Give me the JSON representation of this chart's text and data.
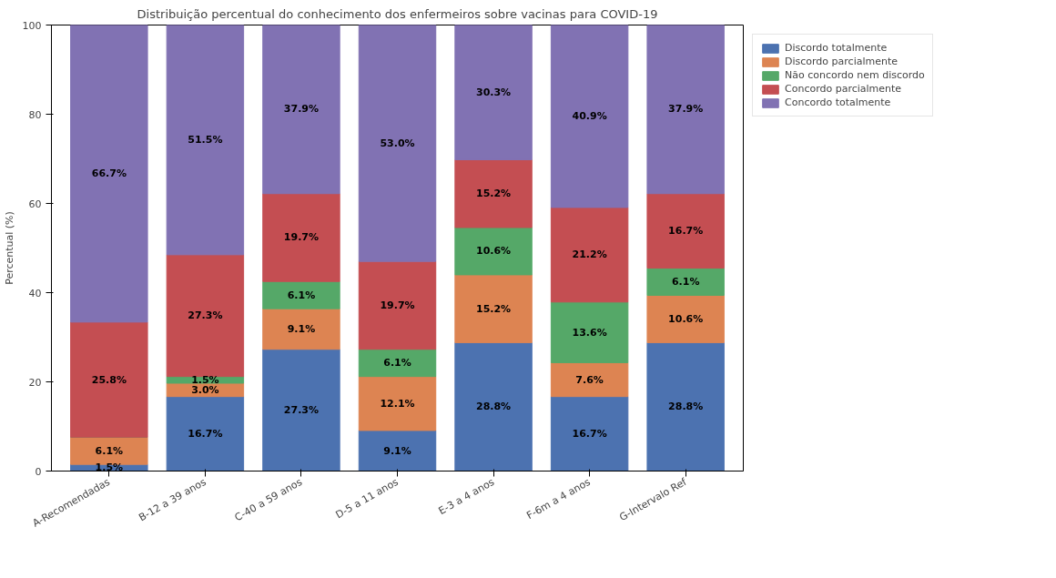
{
  "chart_data": {
    "type": "bar",
    "stacked": true,
    "title": "Distribuição percentual do conhecimento dos enfermeiros sobre vacinas para COVID-19",
    "ylabel": "Percentual (%)",
    "categories": [
      "A-Recomendadas",
      "B-12 a 39 anos",
      "C-40 a 59 anos",
      "D-5 a 11 anos",
      "E-3 a 4 anos",
      "F-6m a 4 anos",
      "G-Intervalo Ref"
    ],
    "series": [
      {
        "name": "Discordo totalmente",
        "color": "#4c72b0",
        "values": [
          1.5,
          16.7,
          27.3,
          9.1,
          28.8,
          16.7,
          28.8
        ],
        "value_labels": [
          "1.5%",
          "16.7%",
          "27.3%",
          "9.1%",
          "28.8%",
          "16.7%",
          "28.8%"
        ]
      },
      {
        "name": "Discordo parcialmente",
        "color": "#dd8452",
        "values": [
          6.1,
          3.0,
          9.1,
          12.1,
          15.2,
          7.6,
          10.6
        ],
        "value_labels": [
          "6.1%",
          "3.0%",
          "9.1%",
          "12.1%",
          "15.2%",
          "7.6%",
          "10.6%"
        ]
      },
      {
        "name": "Não concordo nem discordo",
        "color": "#55a868",
        "values": [
          0,
          1.5,
          6.1,
          6.1,
          10.6,
          13.6,
          6.1
        ],
        "value_labels": [
          null,
          "1.5%",
          "6.1%",
          "6.1%",
          "10.6%",
          "13.6%",
          "6.1%"
        ]
      },
      {
        "name": "Concordo parcialmente",
        "color": "#c44e52",
        "values": [
          25.8,
          27.3,
          19.7,
          19.7,
          15.2,
          21.2,
          16.7
        ],
        "value_labels": [
          "25.8%",
          "27.3%",
          "19.7%",
          "19.7%",
          "15.2%",
          "21.2%",
          "16.7%"
        ]
      },
      {
        "name": "Concordo totalmente",
        "color": "#8172b3",
        "values": [
          66.7,
          51.5,
          37.9,
          53.0,
          30.3,
          40.9,
          37.9
        ],
        "value_labels": [
          "66.7%",
          "51.5%",
          "37.9%",
          "53.0%",
          "30.3%",
          "40.9%",
          "37.9%"
        ]
      }
    ],
    "ylim": [
      0,
      100
    ],
    "yticks": [
      0,
      20,
      40,
      60,
      80,
      100
    ],
    "grid": false,
    "legend": "top right"
  }
}
